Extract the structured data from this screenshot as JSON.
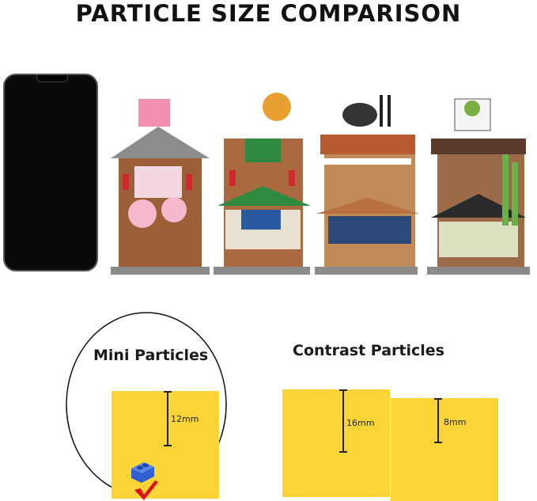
{
  "title": "PARTICLE SIZE COMPARISON",
  "mini": {
    "title": "Mini Particles",
    "size": "12mm"
  },
  "contrast": {
    "title": "Contrast Particles",
    "large_size": "16mm",
    "small_size": "8mm"
  },
  "colors": {
    "brick": "#fbd437",
    "mini_brick": "#2f5fd0",
    "check": "#e01010"
  },
  "icons": [
    "phone",
    "building-blossom",
    "building-bathhouse",
    "building-ramen",
    "building-tea",
    "check-mark-icon"
  ]
}
